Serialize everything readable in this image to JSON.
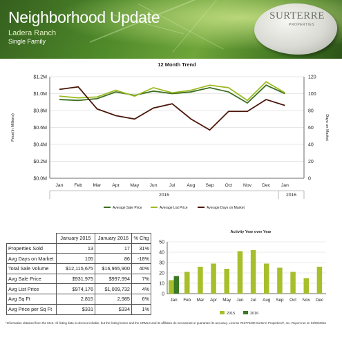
{
  "header": {
    "title": "Neighborhood Update",
    "area": "Ladera Ranch",
    "property_type": "Single Family",
    "logo_text": "SURTERRE",
    "logo_sub": "PROPERTIES"
  },
  "colors": {
    "avg_sale_price": "#3b6f1f",
    "avg_list_price": "#9dbb24",
    "avg_days_on_market": "#4a1608",
    "bar_2015": "#a7bf2b",
    "bar_2016": "#3a7a25"
  },
  "chart_data": [
    {
      "type": "line",
      "title": "12 Month Trend",
      "categories": [
        "Jan",
        "Feb",
        "Mar",
        "Apr",
        "May",
        "Jun",
        "Jul",
        "Aug",
        "Sep",
        "Oct",
        "Nov",
        "Dec",
        "Jan"
      ],
      "year_labels": [
        "2015",
        "2016"
      ],
      "ylabel": "Price(In Millions)",
      "ylabel_right": "Days on Market",
      "ylim": [
        0,
        1.2
      ],
      "ylim_right": [
        0,
        120
      ],
      "yticks": [
        "$0.0M",
        "$0.2M",
        "$0.4M",
        "$0.6M",
        "$0.8M",
        "$1.0M",
        "$1.2M"
      ],
      "yticks_right": [
        "0",
        "20",
        "40",
        "60",
        "80",
        "100",
        "120"
      ],
      "legend_position": "bottom",
      "series": [
        {
          "name": "Average Sale Price",
          "axis": "left",
          "values": [
            0.93,
            0.92,
            0.94,
            1.02,
            0.98,
            1.03,
            1.0,
            1.02,
            1.07,
            1.02,
            0.89,
            1.1,
            1.0
          ]
        },
        {
          "name": "Average List Price",
          "axis": "left",
          "values": [
            0.97,
            0.95,
            0.96,
            1.04,
            0.97,
            1.07,
            1.01,
            1.04,
            1.1,
            1.07,
            0.92,
            1.14,
            1.01
          ]
        },
        {
          "name": "Average Days on Market",
          "axis": "right",
          "values": [
            105,
            108,
            82,
            74,
            70,
            83,
            88,
            70,
            57,
            79,
            79,
            93,
            86
          ]
        }
      ]
    },
    {
      "type": "bar",
      "title": "Activity Year over Year",
      "categories": [
        "Jan",
        "Feb",
        "Mar",
        "Apr",
        "May",
        "Jun",
        "Jul",
        "Aug",
        "Sep",
        "Oct",
        "Nov",
        "Dec"
      ],
      "ylim": [
        0,
        50
      ],
      "yticks": [
        "0",
        "10",
        "20",
        "30",
        "40",
        "50"
      ],
      "legend_position": "bottom",
      "series": [
        {
          "name": "2015",
          "values": [
            13,
            21,
            26,
            29,
            24,
            41,
            42,
            29,
            25,
            21,
            15,
            26
          ]
        },
        {
          "name": "2016",
          "values": [
            17,
            null,
            null,
            null,
            null,
            null,
            null,
            null,
            null,
            null,
            null,
            null
          ]
        }
      ]
    }
  ],
  "table": {
    "headers": [
      "January 2015",
      "January 2016",
      "% Chg"
    ],
    "rows": [
      {
        "label": "Properties Sold",
        "v2015": "13",
        "v2016": "17",
        "chg": "31%"
      },
      {
        "label": "Avg Days on Market",
        "v2015": "105",
        "v2016": "86",
        "chg": "-18%"
      },
      {
        "label": "Total Sale Volume",
        "v2015": "$12,115,675",
        "v2016": "$16,965,900",
        "chg": "40%"
      },
      {
        "label": "Avg Sale Price",
        "v2015": "$931,975",
        "v2016": "$997,994",
        "chg": "7%"
      },
      {
        "label": "Avg List Price",
        "v2015": "$974,176",
        "v2016": "$1,009,732",
        "chg": "4%"
      },
      {
        "label": "Avg Sq Ft",
        "v2015": "2,815",
        "v2016": "2,985",
        "chg": "6%"
      },
      {
        "label": "Avg Price per Sq Ft",
        "v2015": "$331",
        "v2016": "$334",
        "chg": "1%"
      }
    ]
  },
  "footnote": "*Information obtained from the MLS. All listing data is deemed reliable, but the listing broker and the CRMLS and its affiliates do not warrant or guarantee its accuracy. License #01776230 Surterre Properties®, Inc. Report run on 02/06/2016"
}
